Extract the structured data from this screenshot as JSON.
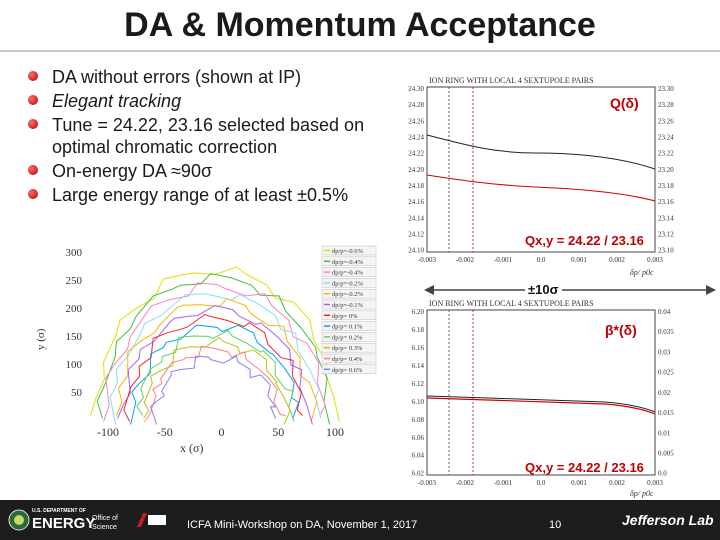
{
  "slide": {
    "title": "DA & Momentum Acceptance",
    "bullets": [
      "DA without errors (shown at IP)",
      "Elegant tracking",
      "Tune = 24.22, 23.16 selected based on optimal chromatic correction",
      "On-energy DA ≈90σ",
      "Large energy range of at least ±0.5%"
    ],
    "bullet_prefix": "",
    "bullet_emph_word": "Elegant"
  },
  "tune_plot": {
    "label": "Q(δ)",
    "caption": "Qx,y = 24.22 / 23.16",
    "header": "ION RING WITH LOCAL 4 SEXTUPOLE PAIRS",
    "y_left_ticks": [
      "24.30",
      "24.28",
      "24.26",
      "24.24",
      "24.22",
      "24.20",
      "24.18",
      "24.16",
      "24.14",
      "24.12",
      "24.10"
    ],
    "y_right_ticks": [
      "23.30",
      "23.28",
      "23.26",
      "23.24",
      "23.22",
      "23.20",
      "23.18",
      "23.16",
      "23.14",
      "23.12",
      "23.10"
    ],
    "x_ticks": [
      "-0.003",
      "-0.002",
      "-0.001",
      "0.0",
      "0.001",
      "0.002",
      "0.003"
    ],
    "x_label": "δp/ p0c"
  },
  "arrow_label": "±10σ",
  "beta_plot": {
    "label": "β*(δ)",
    "caption": "Qx,y = 24.22 / 23.16",
    "header": "ION RING WITH LOCAL 4 SEXTUPOLE PAIRS",
    "y_left_ticks": [
      "6.20",
      "6.18",
      "6.16",
      "6.14",
      "6.12",
      "6.10",
      "6.08",
      "6.06",
      "6.04",
      "6.02"
    ],
    "y_right_ticks": [
      "0.04",
      "0.035",
      "0.03",
      "0.025",
      "0.02",
      "0.015",
      "0.01",
      "0.005",
      "0.0"
    ],
    "x_ticks": [
      "-0.003",
      "-0.002",
      "-0.001",
      "0.0",
      "0.001",
      "0.002",
      "0.003"
    ],
    "x_label": "δp/ p0c"
  },
  "da_plot": {
    "y_label": "y (σ)",
    "x_label": "x (σ)",
    "y_ticks": [
      "300",
      "250",
      "200",
      "150",
      "100",
      "50"
    ],
    "x_ticks": [
      "-100",
      "-50",
      "0",
      "50",
      "100"
    ],
    "legend": [
      "dp/p=-0.6%",
      "dp/p=-0.4%",
      "dp/p=-0.4%",
      "dp/p=-0.2%",
      "dp/p=-0.2%",
      "dp/p=-0.1%",
      "dp/p= 0%",
      "dp/p= 0.1%",
      "dp/p= 0.2%",
      "dp/p= 0.3%",
      "dp/p= 0.4%",
      "dp/p= 0.6%"
    ],
    "legend_colors": [
      "#e0e000",
      "#40c040",
      "#ff80c0",
      "#80e0ff",
      "#ffb000",
      "#a060ff",
      "#ff2020",
      "#00a0ff",
      "#60d060",
      "#c0c000",
      "#ff8080",
      "#8080ff"
    ]
  },
  "footer": {
    "doe": "ENERGY",
    "doe_top": "U.S. DEPARTMENT OF",
    "office": "Office of Science",
    "event": "ICFA Mini-Workshop on DA, November 1, 2017",
    "page": "10",
    "lab": "Jefferson Lab"
  }
}
